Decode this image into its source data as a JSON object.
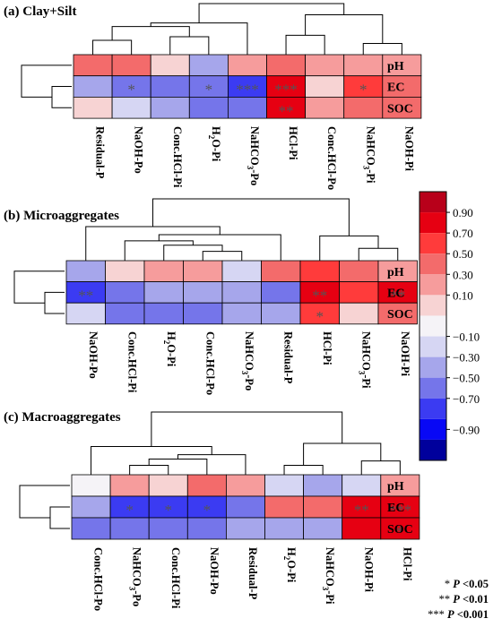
{
  "chart_data": [
    {
      "type": "heatmap",
      "title": "(a) Clay+Silt",
      "rows": [
        "pH",
        "EC",
        "SOC"
      ],
      "columns": [
        "Residual-P",
        "NaOH-Po",
        "Conc.HCl-Pi",
        "H2O-Pi",
        "NaHCO3-Po",
        "HCl-Pi",
        "Conc.HCl-Po",
        "NaHCO3-Pi",
        "NaOH-Pi"
      ],
      "values": [
        [
          0.35,
          0.35,
          0.05,
          -0.35,
          0.25,
          0.45,
          0.1,
          0.1,
          0.1
        ],
        [
          -0.4,
          -0.6,
          -0.55,
          -0.6,
          -0.8,
          0.85,
          0.02,
          0.65,
          0.45
        ],
        [
          0.02,
          -0.15,
          -0.4,
          -0.6,
          -0.55,
          0.85,
          0.2,
          0.3,
          0.35
        ]
      ],
      "significance": [
        [
          "",
          "",
          "",
          "",
          "",
          "",
          "",
          "",
          ""
        ],
        [
          "",
          "*",
          "",
          "*",
          "***",
          "***",
          "",
          "*",
          ""
        ],
        [
          "",
          "",
          "",
          "",
          "",
          "**",
          "",
          "",
          ""
        ]
      ]
    },
    {
      "type": "heatmap",
      "title": "(b) Microaggregates",
      "rows": [
        "pH",
        "EC",
        "SOC"
      ],
      "columns": [
        "NaOH-Po",
        "Conc.HCl-Pi",
        "H2O-Pi",
        "Conc.HCl-Po",
        "NaHCO3-Po",
        "Residual-P",
        "HCl-Pi",
        "NaHCO3-Pi",
        "NaOH-Pi"
      ],
      "values": [
        [
          -0.4,
          0.02,
          0.15,
          0.25,
          -0.15,
          0.35,
          0.6,
          0.35,
          0.25
        ],
        [
          -0.85,
          -0.55,
          -0.45,
          -0.45,
          -0.45,
          -0.65,
          0.75,
          0.65,
          0.75
        ],
        [
          -0.25,
          -0.6,
          -0.55,
          -0.55,
          -0.4,
          -0.35,
          0.65,
          0.02,
          0.4
        ]
      ],
      "significance": [
        [
          "",
          "",
          "",
          "",
          "",
          "",
          "",
          "",
          ""
        ],
        [
          "**",
          "",
          "",
          "",
          "",
          "",
          "**",
          "",
          "**"
        ],
        [
          "",
          "",
          "",
          "",
          "",
          "",
          "*",
          "",
          ""
        ]
      ]
    },
    {
      "type": "heatmap",
      "title": "(c) Macroaggregates",
      "rows": [
        "pH",
        "EC",
        "SOC"
      ],
      "columns": [
        "Conc.HCl-Po",
        "NaHCO3-Po",
        "Conc.HCl-Pi",
        "NaOH-Po",
        "Residual-P",
        "H2O-Pi",
        "NaHCO3-Pi",
        "NaOH-Pi",
        "HCl-Pi"
      ],
      "values": [
        [
          -0.05,
          0.25,
          0.05,
          0.35,
          0.15,
          -0.3,
          -0.35,
          -0.2,
          0.15
        ],
        [
          -0.45,
          -0.8,
          -0.8,
          -0.8,
          -0.65,
          0.4,
          0.45,
          0.75,
          0.85
        ],
        [
          -0.55,
          -0.55,
          -0.6,
          -0.55,
          -0.5,
          -0.35,
          -0.45,
          0.75,
          0.75
        ]
      ],
      "significance": [
        [
          "",
          "",
          "",
          "",
          "",
          "",
          "",
          "",
          ""
        ],
        [
          "",
          "*",
          "*",
          "*",
          "",
          "",
          "",
          "**",
          "***"
        ],
        [
          "",
          "",
          "",
          "",
          "",
          "",
          "",
          "",
          "*"
        ]
      ]
    }
  ],
  "colorbar": {
    "ticks": [
      "0.90",
      "0.70",
      "0.50",
      "0.30",
      "0.10",
      "−0.10",
      "−0.30",
      "−0.50",
      "−0.70",
      "−0.90"
    ],
    "colors": [
      "#b8001a",
      "#e60012",
      "#ff3b3b",
      "#f36b6b",
      "#f69c9c",
      "#f7cfcf",
      "#ffffff",
      "#cdcdf1",
      "#a6a6eb",
      "#7a7ae8",
      "#4646f0",
      "#0a0af5",
      "#00009c"
    ]
  },
  "significance_legend": [
    {
      "stars": "*",
      "prefix": " ",
      "p": "P",
      "rest": " <0.05"
    },
    {
      "stars": "**",
      "prefix": " ",
      "p": "P",
      "rest": " <0.01"
    },
    {
      "stars": "***",
      "prefix": " ",
      "p": "P",
      "rest": " <0.001"
    }
  ]
}
